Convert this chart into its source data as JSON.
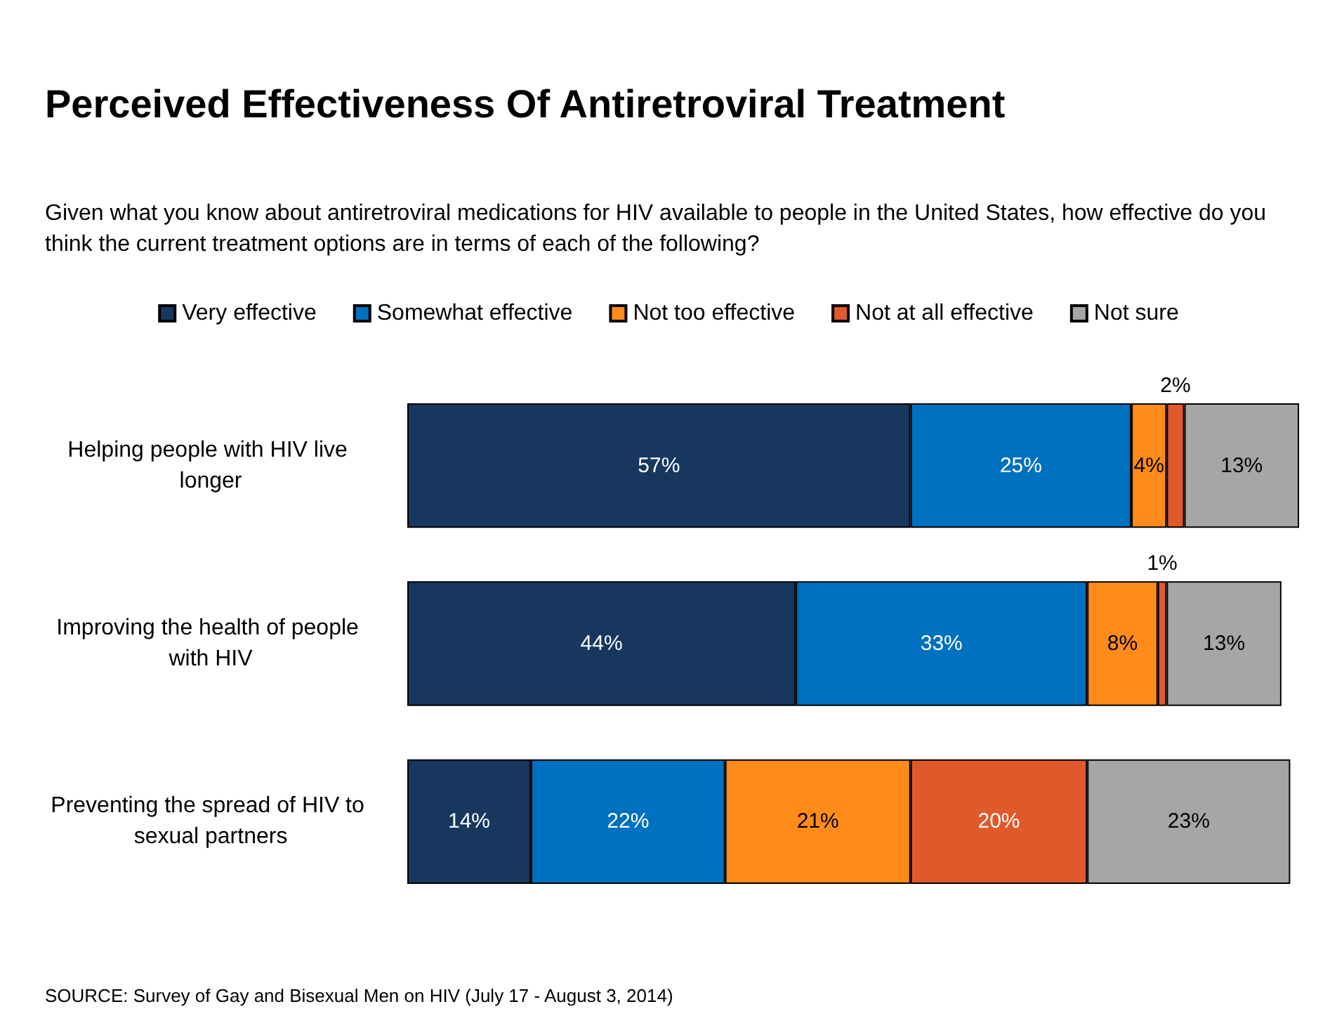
{
  "chart_data": {
    "type": "bar",
    "orientation": "horizontal",
    "stacked": true,
    "legend": "top",
    "title": "Perceived Effectiveness Of Antiretroviral Treatment",
    "subtitle": "Given what you know about antiretroviral medications for HIV available to people in the United States, how effective do you think the current treatment options are in terms of each of the following?",
    "categories": [
      "Helping people with HIV live longer",
      "Improving the health of people with HIV",
      "Preventing the spread of HIV to sexual partners"
    ],
    "series": [
      {
        "name": "Very effective",
        "color": "#17375e",
        "values": [
          57,
          44,
          14
        ],
        "value_labels": [
          "57%",
          "44%",
          "14%"
        ]
      },
      {
        "name": "Somewhat effective",
        "color": "#0070c0",
        "values": [
          25,
          33,
          22
        ],
        "value_labels": [
          "25%",
          "33%",
          "22%"
        ]
      },
      {
        "name": "Not too effective",
        "color": "#ff8c1a",
        "values": [
          4,
          8,
          21
        ],
        "value_labels": [
          "4%",
          "8%",
          "21%"
        ]
      },
      {
        "name": "Not at all effective",
        "color": "#e0592a",
        "values": [
          2,
          1,
          20
        ],
        "value_labels": [
          "2%",
          "1%",
          "20%"
        ]
      },
      {
        "name": "Not sure",
        "color": "#a6a6a6",
        "values": [
          13,
          13,
          23
        ],
        "value_labels": [
          "13%",
          "13%",
          "23%"
        ]
      }
    ],
    "annotations": [
      "SOURCE: Survey of Gay and Bisexual Men on HIV (July 17 - August 3, 2014)"
    ]
  }
}
